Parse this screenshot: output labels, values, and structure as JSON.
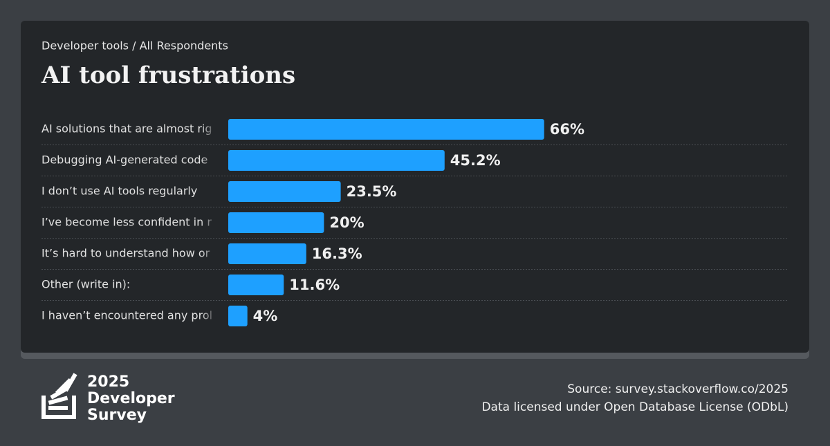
{
  "chart_data": {
    "type": "bar",
    "subtitle": "Developer tools / All Respondents",
    "title": "AI tool frustrations",
    "categories": [
      "AI solutions that are almost rig",
      "Debugging AI-generated code",
      "I don’t use AI tools regularly",
      "I’ve become less confident in r",
      "It’s hard to understand how or",
      "Other (write in):",
      "I haven’t encountered any prol"
    ],
    "values": [
      66,
      45.2,
      23.5,
      20,
      16.3,
      11.6,
      4
    ],
    "value_labels": [
      "66%",
      "45.2%",
      "23.5%",
      "20%",
      "16.3%",
      "11.6%",
      "4%"
    ],
    "color": "#1ea0ff"
  },
  "footer": {
    "logo": [
      "2025",
      "Developer",
      "Survey"
    ],
    "source": "Source: survey.stackoverflow.co/2025",
    "license": "Data licensed under Open Database License (ODbL)"
  }
}
